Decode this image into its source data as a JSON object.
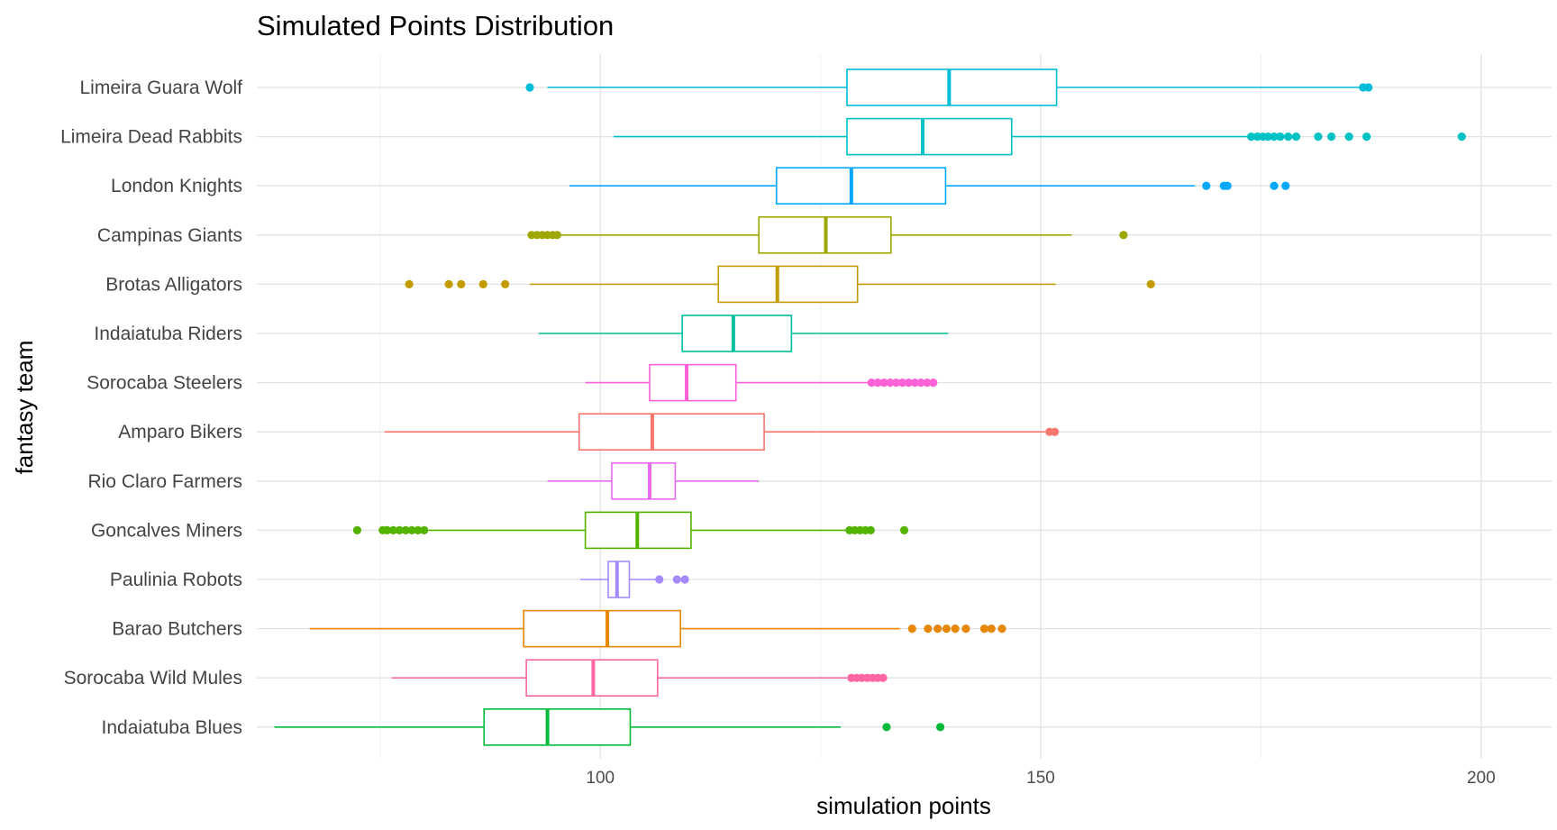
{
  "chart_data": {
    "type": "boxplot",
    "title": "Simulated Points Distribution",
    "xlabel": "simulation points",
    "ylabel": "fantasy team",
    "xlim": [
      61,
      208
    ],
    "x_ticks": [
      100,
      150,
      200
    ],
    "x_minor_ticks": [
      75,
      125,
      175
    ],
    "grid": true,
    "legend": "none",
    "series": [
      {
        "name": "Limeira Guara Wolf",
        "color": "#00BCD8",
        "whisker_low": 94,
        "q1": 128,
        "median": 139.6,
        "q3": 151.8,
        "whisker_high": 187,
        "outliers": [
          92,
          186.6,
          187.2
        ]
      },
      {
        "name": "Limeira Dead Rabbits",
        "color": "#00C1C4",
        "whisker_low": 101.5,
        "q1": 128,
        "median": 136.6,
        "q3": 146.7,
        "whisker_high": 173.5,
        "outliers": [
          173.9,
          174.6,
          175.2,
          175.8,
          176.5,
          177.2,
          178.1,
          179,
          181.5,
          183,
          185,
          187,
          197.8
        ]
      },
      {
        "name": "London Knights",
        "color": "#00A9FF",
        "whisker_low": 96.5,
        "q1": 120,
        "median": 128.5,
        "q3": 139.2,
        "whisker_high": 167.5,
        "outliers": [
          168.8,
          170.8,
          171.2,
          176.5,
          177.8
        ]
      },
      {
        "name": "Campinas Giants",
        "color": "#9DA700",
        "whisker_low": 95.5,
        "q1": 118,
        "median": 125.6,
        "q3": 133,
        "whisker_high": 153.5,
        "outliers": [
          92.2,
          92.8,
          93.4,
          94,
          94.6,
          95.1,
          159.4
        ]
      },
      {
        "name": "Brotas Alligators",
        "color": "#C29C00",
        "whisker_low": 92,
        "q1": 113.4,
        "median": 120.1,
        "q3": 129.2,
        "whisker_high": 151.7,
        "outliers": [
          78.3,
          82.8,
          84.2,
          86.7,
          89.2,
          162.5
        ]
      },
      {
        "name": "Indaiatuba Riders",
        "color": "#00BFA0",
        "whisker_low": 93,
        "q1": 109.3,
        "median": 115.1,
        "q3": 121.7,
        "whisker_high": 139.5,
        "outliers": []
      },
      {
        "name": "Sorocaba Steelers",
        "color": "#FF61D7",
        "whisker_low": 98.3,
        "q1": 105.6,
        "median": 109.8,
        "q3": 115.4,
        "whisker_high": 130.5,
        "outliers": [
          130.8,
          131.5,
          132.2,
          132.9,
          133.6,
          134.3,
          135,
          135.7,
          136.4,
          137.1,
          137.8
        ]
      },
      {
        "name": "Amparo Bikers",
        "color": "#F8766D",
        "whisker_low": 75.5,
        "q1": 97.6,
        "median": 105.9,
        "q3": 118.6,
        "whisker_high": 150.5,
        "outliers": [
          151,
          151.6
        ]
      },
      {
        "name": "Rio Claro Farmers",
        "color": "#E76BF3",
        "whisker_low": 94,
        "q1": 101.3,
        "median": 105.6,
        "q3": 108.5,
        "whisker_high": 118,
        "outliers": []
      },
      {
        "name": "Goncalves Miners",
        "color": "#53B400",
        "whisker_low": 80.5,
        "q1": 98.3,
        "median": 104.2,
        "q3": 110.3,
        "whisker_high": 128,
        "outliers": [
          72.4,
          75.3,
          75.8,
          76.5,
          77.2,
          77.9,
          78.6,
          79.3,
          80,
          128.3,
          128.9,
          129.5,
          130.1,
          130.7,
          134.5
        ]
      },
      {
        "name": "Paulinia Robots",
        "color": "#A58AFF",
        "whisker_low": 97.7,
        "q1": 100.9,
        "median": 101.9,
        "q3": 103.3,
        "whisker_high": 106.5,
        "outliers": [
          106.7,
          108.7,
          109.6
        ]
      },
      {
        "name": "Barao Butchers",
        "color": "#E58700",
        "whisker_low": 67,
        "q1": 91.3,
        "median": 100.8,
        "q3": 109.1,
        "whisker_high": 134,
        "outliers": [
          135.4,
          137.2,
          138.3,
          139.3,
          140.3,
          141.5,
          143.6,
          144.4,
          145.6
        ]
      },
      {
        "name": "Sorocaba Wild Mules",
        "color": "#FF67A4",
        "whisker_low": 76.3,
        "q1": 91.6,
        "median": 99.2,
        "q3": 106.5,
        "whisker_high": 128,
        "outliers": [
          128.5,
          129.1,
          129.7,
          130.3,
          130.9,
          131.5,
          132.1
        ]
      },
      {
        "name": "Indaiatuba Blues",
        "color": "#00BA38",
        "whisker_low": 63,
        "q1": 86.8,
        "median": 94,
        "q3": 103.4,
        "whisker_high": 127.3,
        "outliers": [
          132.5,
          138.6
        ]
      }
    ]
  }
}
